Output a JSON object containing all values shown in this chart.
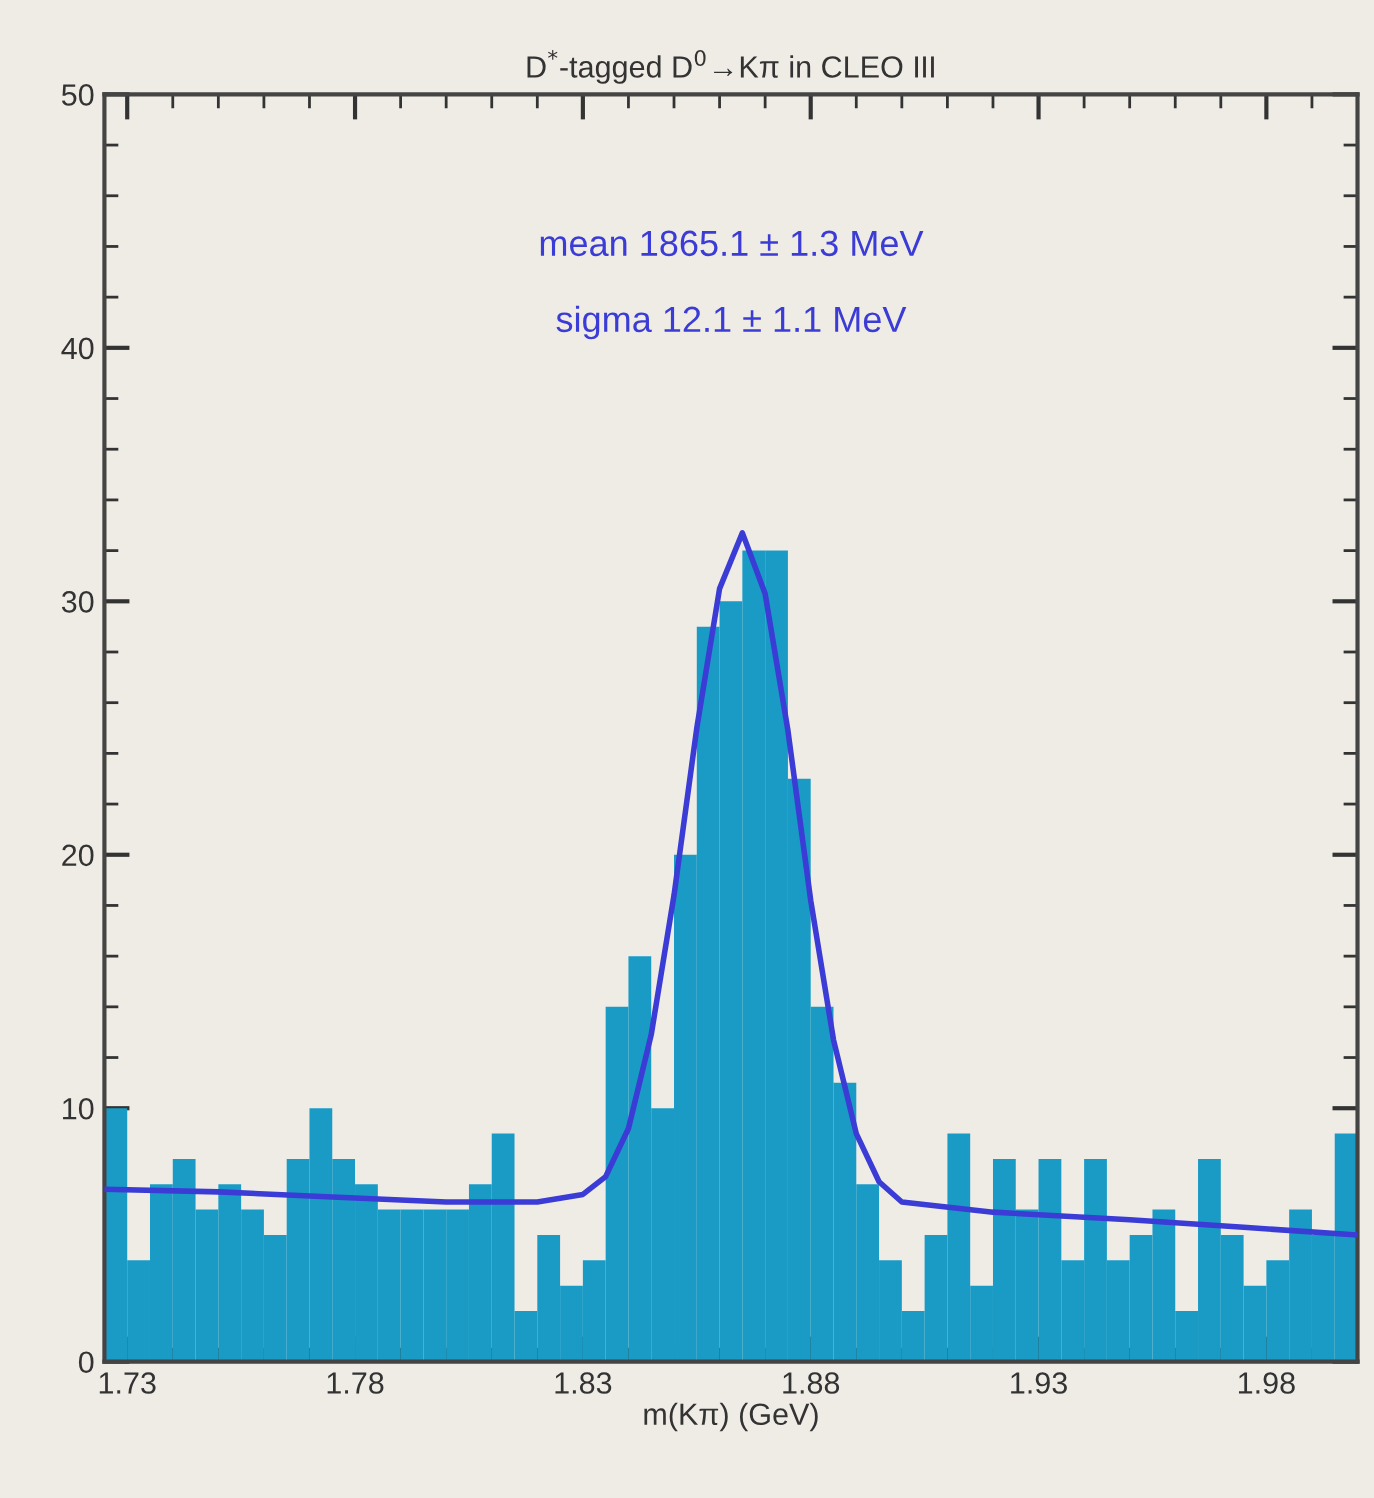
{
  "chart_data": {
    "type": "histogram",
    "title": "D$^{*}$-tagged D$^{0}$→Kπ in CLEO III",
    "xlabel": "m(Kπ) (GeV)",
    "annotations": [
      "mean 1865.1 ± 1.3 MeV",
      "sigma 12.1 ± 1.1 MeV"
    ],
    "bins": [
      1.725,
      1.73,
      1.735,
      1.74,
      1.745,
      1.75,
      1.755,
      1.76,
      1.765,
      1.77,
      1.775,
      1.78,
      1.785,
      1.79,
      1.795,
      1.8,
      1.805,
      1.81,
      1.815,
      1.82,
      1.825,
      1.83,
      1.835,
      1.84,
      1.845,
      1.85,
      1.855,
      1.86,
      1.865,
      1.87,
      1.875,
      1.88,
      1.885,
      1.89,
      1.895,
      1.9,
      1.905,
      1.91,
      1.915,
      1.92,
      1.925,
      1.93,
      1.935,
      1.94,
      1.945,
      1.95,
      1.955,
      1.96,
      1.965,
      1.97,
      1.975,
      1.98,
      1.985,
      1.99,
      1.995,
      2.0
    ],
    "values": [
      10,
      4,
      7,
      8,
      6,
      7,
      6,
      5,
      8,
      10,
      8,
      7,
      6,
      6,
      6,
      6,
      7,
      9,
      2,
      5,
      3,
      4,
      14,
      16,
      10,
      20,
      29,
      30,
      32,
      32,
      23,
      14,
      11,
      7,
      4,
      2,
      5,
      9,
      3,
      8,
      6,
      8,
      4,
      8,
      4,
      5,
      6,
      2,
      8,
      5,
      3,
      4,
      6,
      5,
      9
    ],
    "color": "#1a9bc6",
    "series": [
      {
        "type": "line",
        "color": "#3b3bd6",
        "x": [
          1.725,
          1.75,
          1.775,
          1.8,
          1.82,
          1.83,
          1.835,
          1.84,
          1.845,
          1.85,
          1.855,
          1.86,
          1.865,
          1.87,
          1.875,
          1.88,
          1.885,
          1.89,
          1.895,
          1.9,
          1.92,
          1.95,
          1.975,
          2.0
        ],
        "values": [
          6.8,
          6.7,
          6.5,
          6.3,
          6.3,
          6.6,
          7.3,
          9.2,
          12.9,
          18.4,
          25,
          30.5,
          32.7,
          30.3,
          24.9,
          18.2,
          12.7,
          9.0,
          7.1,
          6.3,
          5.9,
          5.6,
          5.3,
          5.0
        ]
      }
    ],
    "xlim": [
      1.725,
      2.0
    ],
    "xticks": [
      1.73,
      1.78,
      1.83,
      1.88,
      1.93,
      1.98
    ],
    "ylim": [
      0,
      50
    ],
    "yticks": [
      0,
      10,
      20,
      30,
      40,
      50
    ],
    "grid": false,
    "legend": false
  }
}
